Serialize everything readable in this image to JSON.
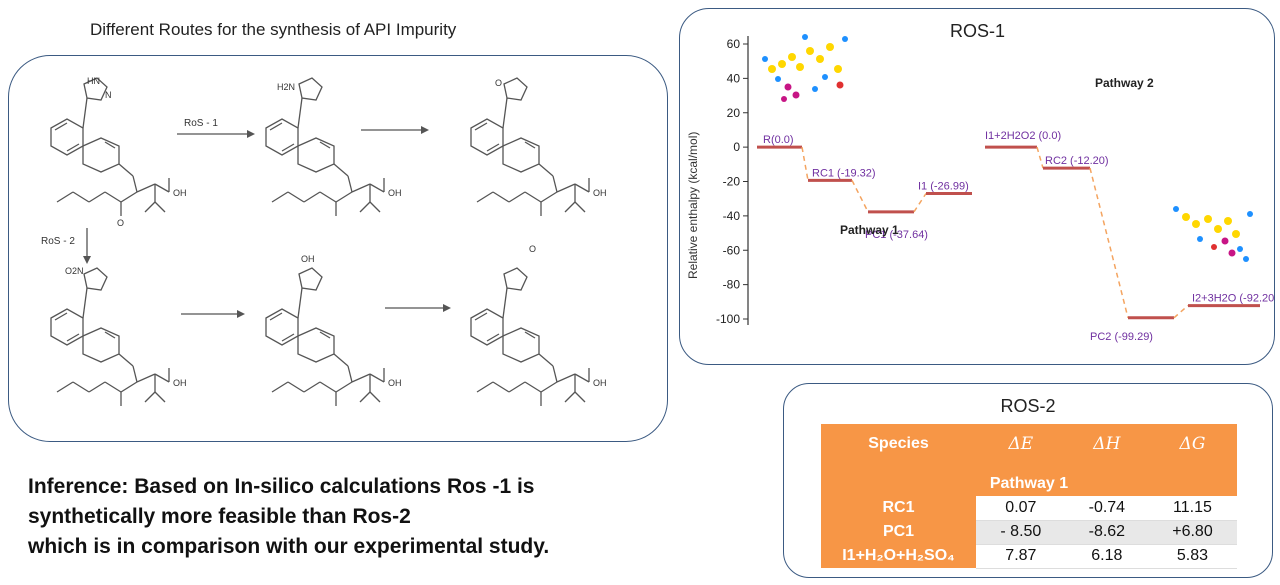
{
  "scheme": {
    "title": "Different Routes for the synthesis of API Impurity",
    "route1_label": "RoS - 1",
    "route2_label": "RoS - 2",
    "labels": {
      "hn": "HN",
      "n": "N",
      "h2n": "H2N",
      "o": "O",
      "o2n": "O2N",
      "oh_top": "OH",
      "oh": "OH"
    }
  },
  "inference": {
    "lines": [
      "Inference: Based on In-silico calculations Ros -1 is",
      "synthetically more feasible than Ros-2",
      "which is in comparison with our experimental study."
    ]
  },
  "ros1": {
    "title": "ROS-1",
    "ylabel": "Relative enthalpy (kcal/mol)",
    "pathway1": "Pathway 1",
    "pathway2": "Pathway 2",
    "colors": {
      "level": "#c0504d",
      "connector": "#f4a460",
      "label": "#7030a0"
    }
  },
  "chart_data": {
    "type": "line",
    "title": "ROS-1",
    "ylabel": "Relative enthalpy (kcal/mol)",
    "xlabel": "",
    "ylim": [
      -100,
      60
    ],
    "yticks": [
      60,
      40,
      20,
      0,
      -20,
      -40,
      -60,
      -80,
      -100
    ],
    "series": [
      {
        "name": "Pathway 1",
        "points": [
          {
            "label": "R(0.0)",
            "value": 0.0
          },
          {
            "label": "RC1 (-19.32)",
            "value": -19.32
          },
          {
            "label": "PC1 (-37.64)",
            "value": -37.64
          },
          {
            "label": "I1 (-26.99)",
            "value": -26.99
          }
        ]
      },
      {
        "name": "Pathway 2",
        "points": [
          {
            "label": "I1+2H2O2 (0.0)",
            "value": 0.0
          },
          {
            "label": "RC2 (-12.20)",
            "value": -12.2
          },
          {
            "label": "PC2 (-99.29)",
            "value": -99.29
          },
          {
            "label": "I2+3H2O (-92.20)",
            "value": -92.2
          }
        ]
      }
    ]
  },
  "ros2": {
    "title": "ROS-2",
    "headers": [
      "Species",
      "ΔE",
      "ΔH",
      "ΔG"
    ],
    "pathway_label": "Pathway 1",
    "rows": [
      {
        "species": "RC1",
        "dE": "0.07",
        "dH": "-0.74",
        "dG": "11.15"
      },
      {
        "species": "PC1",
        "dE": "- 8.50",
        "dH": "-8.62",
        "dG": "+6.80"
      },
      {
        "species": "I1+H₂O+H₂SO₄",
        "dE": "7.87",
        "dH": "6.18",
        "dG": "5.83"
      }
    ]
  }
}
